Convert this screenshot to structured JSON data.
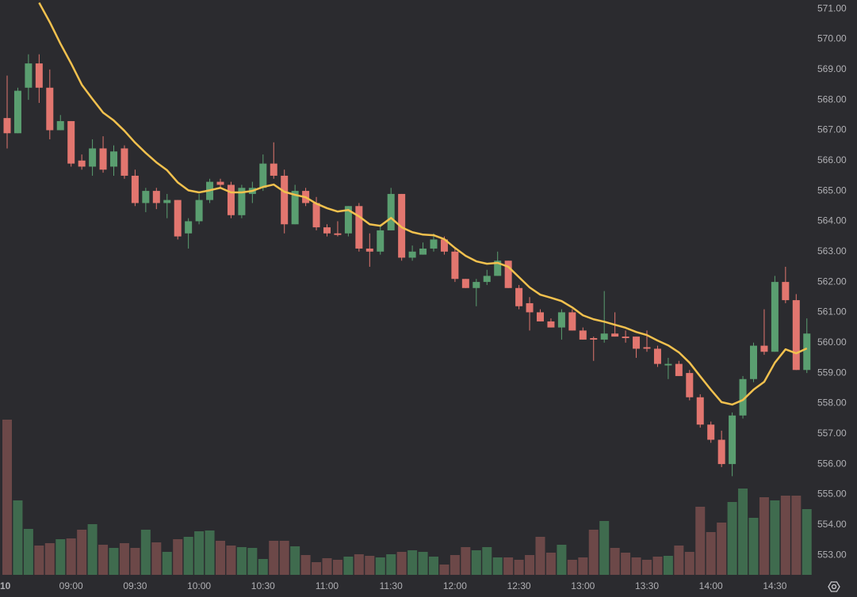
{
  "chart_data": {
    "type": "candlestick",
    "categories": [
      "10",
      null,
      null,
      null,
      null,
      null,
      "09:00",
      null,
      null,
      null,
      null,
      null,
      "09:30",
      null,
      null,
      null,
      null,
      null,
      "10:00",
      null,
      null,
      null,
      null,
      null,
      "10:30",
      null,
      null,
      null,
      null,
      null,
      "11:00",
      null,
      null,
      null,
      null,
      null,
      "11:30",
      null,
      null,
      null,
      null,
      null,
      "12:00",
      null,
      null,
      null,
      null,
      null,
      "12:30",
      null,
      null,
      null,
      null,
      null,
      "13:00",
      null,
      null,
      null,
      null,
      null,
      "13:30",
      null,
      null,
      null,
      null,
      null,
      "14:00",
      null,
      null,
      null,
      null,
      null,
      "14:30",
      null,
      null,
      null
    ],
    "open": [
      567.4,
      566.9,
      568.4,
      569.2,
      568.4,
      567.0,
      567.3,
      566.0,
      565.8,
      566.4,
      565.8,
      566.4,
      565.5,
      564.6,
      565.0,
      564.6,
      564.7,
      563.6,
      564.0,
      564.7,
      565.3,
      565.2,
      564.2,
      564.9,
      565.1,
      565.9,
      565.5,
      563.9,
      565.0,
      564.6,
      563.8,
      563.6,
      563.6,
      564.5,
      563.1,
      563.0,
      563.7,
      564.9,
      562.8,
      562.9,
      563.1,
      563.4,
      563.0,
      562.1,
      561.8,
      562.0,
      562.2,
      562.7,
      561.8,
      561.3,
      561.0,
      560.7,
      560.5,
      561.0,
      560.4,
      560.15,
      560.1,
      560.3,
      560.2,
      560.2,
      559.85,
      559.8,
      559.25,
      559.3,
      559.0,
      558.2,
      557.3,
      556.8,
      556.0,
      557.6,
      558.8,
      559.9,
      559.7,
      562.0,
      561.4,
      559.1
    ],
    "high": [
      568.8,
      568.4,
      569.5,
      569.5,
      569.0,
      567.5,
      567.3,
      566.2,
      566.7,
      566.8,
      566.5,
      566.5,
      565.7,
      565.1,
      565.1,
      564.9,
      564.7,
      564.1,
      564.9,
      565.4,
      565.4,
      565.3,
      565.2,
      565.3,
      566.2,
      566.6,
      565.7,
      565.2,
      565.1,
      564.8,
      563.9,
      564.0,
      564.5,
      564.6,
      563.6,
      563.9,
      565.1,
      564.9,
      563.2,
      563.3,
      563.6,
      563.5,
      563.1,
      562.1,
      562.1,
      562.4,
      563.0,
      562.7,
      561.9,
      561.5,
      561.1,
      560.8,
      561.1,
      561.1,
      560.5,
      560.2,
      561.7,
      561.0,
      560.4,
      560.2,
      560.4,
      559.9,
      559.5,
      559.4,
      559.1,
      558.3,
      557.4,
      557.1,
      557.7,
      558.9,
      560.0,
      561.1,
      562.2,
      562.5,
      561.6,
      560.8
    ],
    "low": [
      566.4,
      566.9,
      568.0,
      567.9,
      566.7,
      567.0,
      565.8,
      565.7,
      565.5,
      565.6,
      565.5,
      565.4,
      564.5,
      564.3,
      564.4,
      564.1,
      563.4,
      563.1,
      563.9,
      564.6,
      565.1,
      564.1,
      564.1,
      564.6,
      565.0,
      565.4,
      563.6,
      563.9,
      564.5,
      563.7,
      563.5,
      563.5,
      563.5,
      563.0,
      562.5,
      562.9,
      563.7,
      562.7,
      562.7,
      562.9,
      563.0,
      562.9,
      562.0,
      561.8,
      561.2,
      561.9,
      562.2,
      561.8,
      561.1,
      560.4,
      560.7,
      560.5,
      560.1,
      560.4,
      560.1,
      559.4,
      560.0,
      560.2,
      560.0,
      559.5,
      559.7,
      559.2,
      558.8,
      558.9,
      558.1,
      557.2,
      556.7,
      555.9,
      555.6,
      557.5,
      558.7,
      559.6,
      559.7,
      561.3,
      559.1,
      559.0
    ],
    "close": [
      566.9,
      568.3,
      569.2,
      568.4,
      567.0,
      567.3,
      565.9,
      565.8,
      566.4,
      565.7,
      566.3,
      565.5,
      564.6,
      565.0,
      564.6,
      564.7,
      563.5,
      564.0,
      564.7,
      565.3,
      565.2,
      564.2,
      565.1,
      565.1,
      565.9,
      565.5,
      563.9,
      565.0,
      564.6,
      563.8,
      563.6,
      563.55,
      564.5,
      563.1,
      563.0,
      563.7,
      564.9,
      562.8,
      563.0,
      563.1,
      563.4,
      563.0,
      562.1,
      561.8,
      562.0,
      562.2,
      562.7,
      561.8,
      561.2,
      561.0,
      560.7,
      560.5,
      561.0,
      560.4,
      560.1,
      560.1,
      560.3,
      560.2,
      560.15,
      559.8,
      559.8,
      559.3,
      559.3,
      558.9,
      558.2,
      557.3,
      556.8,
      556.0,
      557.6,
      558.8,
      559.9,
      559.7,
      562.0,
      561.4,
      559.1,
      560.3
    ],
    "up_color": "#5a9e70",
    "down_color": "#e2766f",
    "volume": {
      "values": [
        196,
        94,
        58,
        37,
        40,
        45,
        46,
        57,
        64,
        38,
        34,
        40,
        34,
        57,
        41,
        29,
        45,
        48,
        55,
        56,
        43,
        37,
        35,
        34,
        20,
        43,
        43,
        36,
        25,
        16,
        21,
        19,
        23,
        26,
        24,
        22,
        26,
        29,
        31,
        29,
        23,
        13,
        25,
        35,
        31,
        35,
        22,
        22,
        19,
        25,
        48,
        28,
        38,
        19,
        22,
        57,
        68,
        34,
        28,
        22,
        19,
        23,
        24,
        37,
        29,
        86,
        54,
        66,
        92,
        109,
        72,
        98,
        94,
        100,
        100,
        83
      ],
      "up_color": "#3f6b4e",
      "down_color": "#6c4848"
    },
    "moving_average": {
      "values": [
        null,
        null,
        null,
        571.2,
        570.56,
        569.85,
        569.2,
        568.5,
        568.03,
        567.58,
        567.32,
        566.98,
        566.59,
        566.25,
        565.94,
        565.68,
        565.28,
        565.02,
        564.95,
        565.02,
        565.1,
        564.95,
        564.95,
        565.0,
        565.13,
        565.21,
        564.97,
        564.87,
        564.79,
        564.58,
        564.43,
        564.32,
        564.37,
        564.16,
        563.9,
        563.85,
        564.11,
        563.8,
        563.64,
        563.56,
        563.54,
        563.41,
        563.12,
        562.86,
        562.68,
        562.6,
        562.63,
        562.5,
        562.16,
        561.82,
        561.58,
        561.48,
        561.37,
        561.16,
        560.9,
        560.77,
        560.69,
        560.59,
        560.49,
        560.35,
        560.25,
        560.07,
        559.91,
        559.68,
        559.34,
        558.89,
        558.45,
        558.04,
        557.96,
        558.11,
        558.45,
        558.71,
        559.34,
        559.78,
        559.65,
        559.81
      ],
      "color": "#f2c14e"
    },
    "ylim": [
      552.35,
      571.29
    ],
    "yticks": [
      {
        "value": 553,
        "label": "553.00"
      },
      {
        "value": 554,
        "label": "554.00"
      },
      {
        "value": 555,
        "label": "555.00"
      },
      {
        "value": 556,
        "label": "556.00"
      },
      {
        "value": 557,
        "label": "557.00"
      },
      {
        "value": 558,
        "label": "558.00"
      },
      {
        "value": 559,
        "label": "559.00"
      },
      {
        "value": 560,
        "label": "560.00"
      },
      {
        "value": 561,
        "label": "561.00"
      },
      {
        "value": 562,
        "label": "562.00"
      },
      {
        "value": 563,
        "label": "563.00"
      },
      {
        "value": 564,
        "label": "564.00"
      },
      {
        "value": 565,
        "label": "565.00"
      },
      {
        "value": 566,
        "label": "566.00"
      },
      {
        "value": 567,
        "label": "567.00"
      },
      {
        "value": 568,
        "label": "568.00"
      },
      {
        "value": 569,
        "label": "569.00"
      },
      {
        "value": 570,
        "label": "570.00"
      },
      {
        "value": 571,
        "label": "571.00"
      }
    ]
  }
}
